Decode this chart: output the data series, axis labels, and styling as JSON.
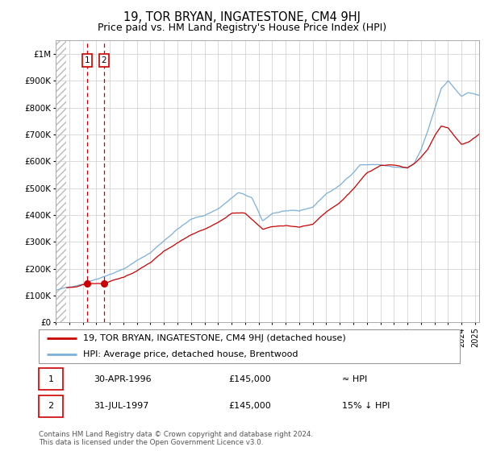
{
  "title": "19, TOR BRYAN, INGATESTONE, CM4 9HJ",
  "subtitle": "Price paid vs. HM Land Registry's House Price Index (HPI)",
  "legend_line1": "19, TOR BRYAN, INGATESTONE, CM4 9HJ (detached house)",
  "legend_line2": "HPI: Average price, detached house, Brentwood",
  "sale1_date": "30-APR-1996",
  "sale1_price": "£145,000",
  "sale1_note": "≈ HPI",
  "sale2_date": "31-JUL-1997",
  "sale2_price": "£145,000",
  "sale2_note": "15% ↓ HPI",
  "footer": "Contains HM Land Registry data © Crown copyright and database right 2024.\nThis data is licensed under the Open Government Licence v3.0.",
  "hpi_color": "#7ab0d8",
  "price_color": "#cc0000",
  "sale_marker_color": "#cc0000",
  "dashed_line_color": "#cc0000",
  "grid_color": "#cccccc",
  "ylim": [
    0,
    1050000
  ],
  "xlim_start": 1994.0,
  "xlim_end": 2025.3,
  "sale1_x": 1996.33,
  "sale1_y": 145000,
  "sale2_x": 1997.58,
  "sale2_y": 145000,
  "hatch_end_x": 1994.75
}
